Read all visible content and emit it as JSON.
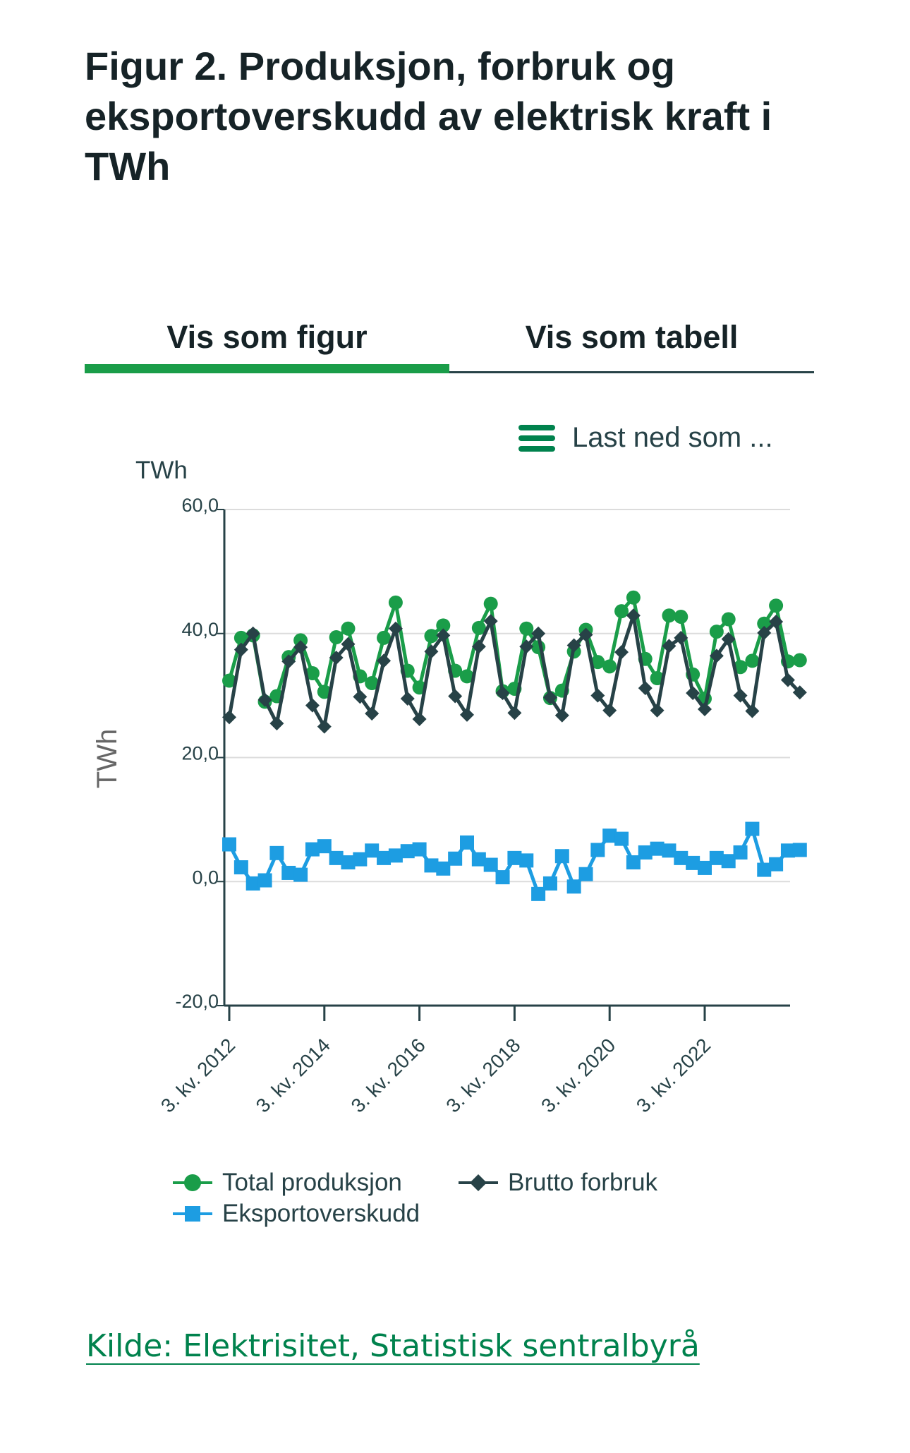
{
  "title": "Figur 2. Produksjon, forbruk og eksportoverskudd av elektrisk kraft i TWh",
  "tabs": [
    {
      "label": "Vis som figur",
      "active": true
    },
    {
      "label": "Vis som tabell",
      "active": false
    }
  ],
  "download": {
    "label": "Last ned som ...",
    "icon": "hamburger-menu-icon"
  },
  "source": {
    "label": "Kilde: Elektrisitet, Statistisk sentralbyrå"
  },
  "colors": {
    "produksjon": "#1a9d49",
    "forbruk": "#274247",
    "eksport": "#1d9de2",
    "link": "#00824d",
    "accent": "#1a9d49"
  },
  "chart_data": {
    "type": "line",
    "unit_label": "TWh",
    "ylabel": "TWh",
    "ylim": [
      -20,
      60
    ],
    "yticks": [
      -20,
      0,
      20,
      40,
      60
    ],
    "ytick_labels": [
      "-20,0",
      "0,0",
      "20,0",
      "40,0",
      "60,0"
    ],
    "x_labels": [
      "3. kv. 2012",
      "3. kv. 2014",
      "3. kv. 2016",
      "3. kv. 2018",
      "3. kv. 2020",
      "3. kv. 2022"
    ],
    "grid": true,
    "legend_position": "bottom",
    "x": [
      "3. kv. 2012",
      "4. kv. 2012",
      "1. kv. 2013",
      "2. kv. 2013",
      "3. kv. 2013",
      "4. kv. 2013",
      "1. kv. 2014",
      "2. kv. 2014",
      "3. kv. 2014",
      "4. kv. 2014",
      "1. kv. 2015",
      "2. kv. 2015",
      "3. kv. 2015",
      "4. kv. 2015",
      "1. kv. 2016",
      "2. kv. 2016",
      "3. kv. 2016",
      "4. kv. 2016",
      "1. kv. 2017",
      "2. kv. 2017",
      "3. kv. 2017",
      "4. kv. 2017",
      "1. kv. 2018",
      "2. kv. 2018",
      "3. kv. 2018",
      "4. kv. 2018",
      "1. kv. 2019",
      "2. kv. 2019",
      "3. kv. 2019",
      "4. kv. 2019",
      "1. kv. 2020",
      "2. kv. 2020",
      "3. kv. 2020",
      "4. kv. 2020",
      "1. kv. 2021",
      "2. kv. 2021",
      "3. kv. 2021",
      "4. kv. 2021",
      "1. kv. 2022",
      "2. kv. 2022",
      "3. kv. 2022",
      "4. kv. 2022",
      "1. kv. 2023",
      "2. kv. 2023",
      "3. kv. 2023",
      "4. kv. 2023",
      "1. kv. 2024",
      "2. kv. 2024",
      "3. kv. 2024"
    ],
    "series": [
      {
        "name": "Total produksjon",
        "marker": "circle",
        "values": [
          32.4,
          39.3,
          39.7,
          29.0,
          29.9,
          36.2,
          38.9,
          33.6,
          30.6,
          39.4,
          40.8,
          33.1,
          32.0,
          39.3,
          45.0,
          34.0,
          31.3,
          39.6,
          41.3,
          34.0,
          33.1,
          40.9,
          44.8,
          30.7,
          31.1,
          40.8,
          37.8,
          29.6,
          30.8,
          37.1,
          40.6,
          35.4,
          34.7,
          43.6,
          45.8,
          35.9,
          32.8,
          42.9,
          42.7,
          33.4,
          29.5,
          40.3,
          42.3,
          34.6,
          35.6,
          41.6,
          44.5,
          35.5,
          35.7
        ]
      },
      {
        "name": "Brutto forbruk",
        "marker": "diamond",
        "values": [
          26.5,
          37.4,
          40.0,
          29.3,
          25.5,
          35.5,
          37.8,
          28.4,
          25.0,
          36.1,
          38.3,
          29.8,
          27.1,
          35.6,
          40.8,
          29.5,
          26.2,
          37.1,
          39.7,
          29.9,
          26.9,
          37.9,
          42.0,
          30.4,
          27.2,
          37.9,
          40.0,
          29.7,
          26.8,
          38.1,
          39.8,
          30.0,
          27.6,
          37.0,
          42.9,
          31.2,
          27.6,
          38.0,
          39.3,
          30.4,
          27.8,
          36.4,
          39.1,
          30.0,
          27.5,
          40.1,
          41.9,
          32.5,
          30.5
        ]
      },
      {
        "name": "Eksportoverskudd",
        "marker": "square",
        "values": [
          6.0,
          2.3,
          -0.3,
          0.2,
          4.6,
          1.4,
          1.1,
          5.2,
          5.7,
          3.8,
          3.1,
          3.6,
          5.0,
          3.8,
          4.2,
          4.9,
          5.2,
          2.6,
          2.1,
          3.7,
          6.3,
          3.6,
          2.7,
          0.7,
          3.8,
          3.4,
          -2.0,
          -0.3,
          4.1,
          -0.8,
          1.2,
          5.1,
          7.4,
          6.9,
          3.1,
          4.7,
          5.3,
          5.0,
          3.8,
          3.0,
          2.2,
          3.8,
          3.3,
          4.7,
          8.5,
          1.9,
          2.8,
          5.0,
          5.1
        ]
      }
    ]
  }
}
